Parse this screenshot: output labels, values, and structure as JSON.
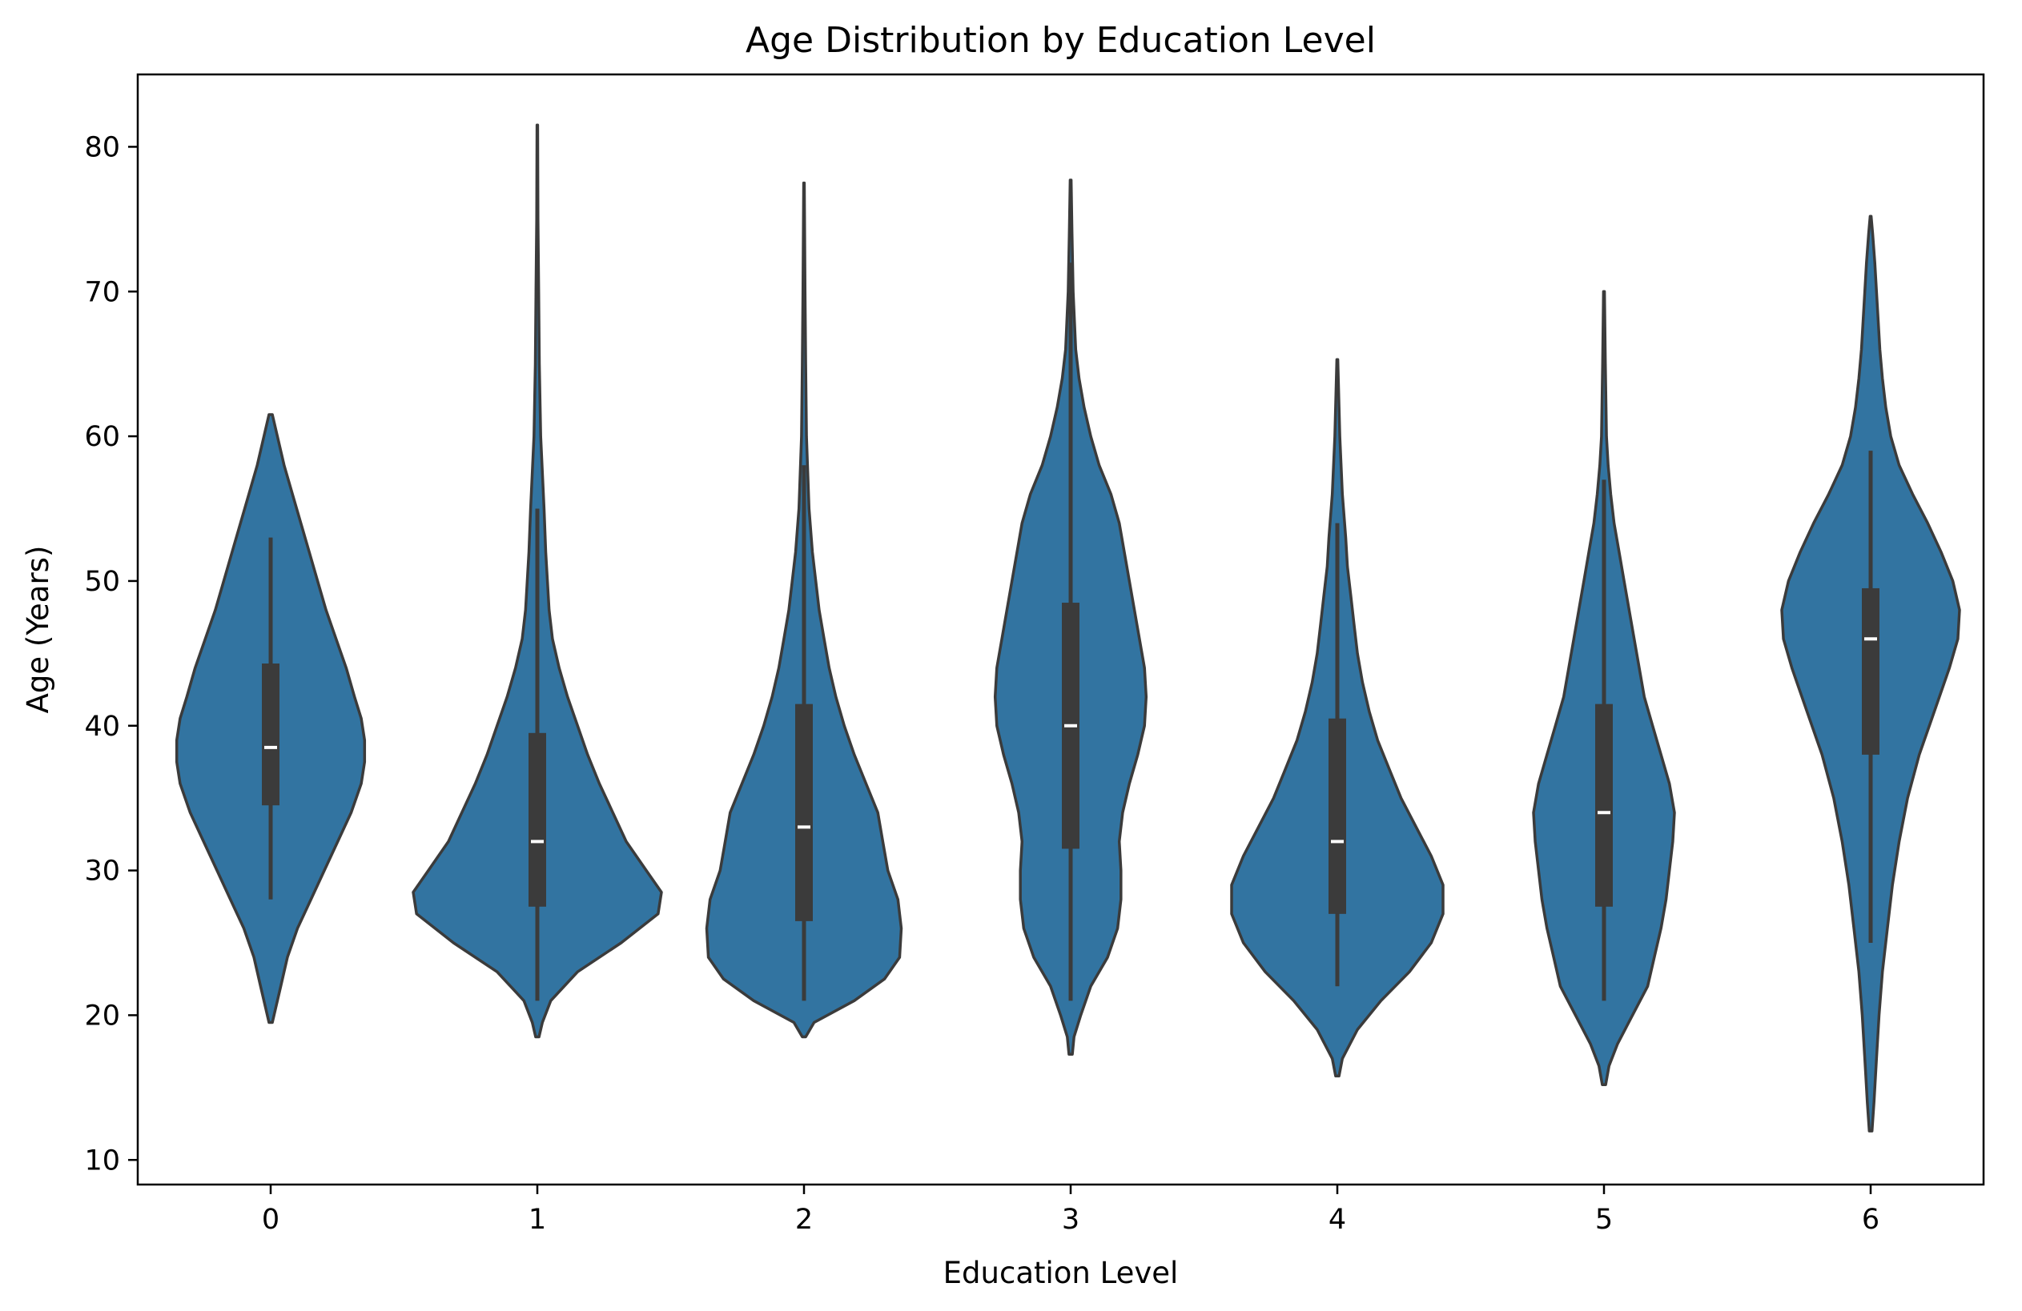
{
  "chart_data": {
    "type": "violin",
    "title": "Age Distribution by Education Level",
    "xlabel": "Education Level",
    "ylabel": "Age (Years)",
    "ylim": [
      8.3,
      85
    ],
    "yticks": [
      10,
      20,
      30,
      40,
      50,
      60,
      70,
      80
    ],
    "categories": [
      "0",
      "1",
      "2",
      "3",
      "4",
      "5",
      "6"
    ],
    "grid": false,
    "legend": "none",
    "colors": {
      "violin_fill": "#3274a1",
      "violin_edge": "#3b3b3b",
      "box": "#3b3b3b",
      "median": "#ffffff"
    },
    "violins": [
      {
        "category": "0",
        "min": 19.5,
        "max": 61.5,
        "whisker_low": 28,
        "q1": 34.5,
        "median": 38.5,
        "q3": 44.3,
        "whisker_high": 53,
        "density": [
          [
            19.5,
            0.01
          ],
          [
            20.5,
            0.03
          ],
          [
            22,
            0.06
          ],
          [
            24,
            0.1
          ],
          [
            26,
            0.16
          ],
          [
            28,
            0.24
          ],
          [
            30,
            0.32
          ],
          [
            32,
            0.4
          ],
          [
            34,
            0.48
          ],
          [
            36,
            0.54
          ],
          [
            37.5,
            0.56
          ],
          [
            39,
            0.56
          ],
          [
            40.5,
            0.54
          ],
          [
            42,
            0.5
          ],
          [
            44,
            0.45
          ],
          [
            46,
            0.39
          ],
          [
            48,
            0.33
          ],
          [
            50,
            0.28
          ],
          [
            52,
            0.23
          ],
          [
            54,
            0.18
          ],
          [
            56,
            0.13
          ],
          [
            58,
            0.08
          ],
          [
            60,
            0.04
          ],
          [
            61.5,
            0.01
          ]
        ]
      },
      {
        "category": "1",
        "min": 18.5,
        "max": 81.5,
        "whisker_low": 21,
        "q1": 27.5,
        "median": 32,
        "q3": 39.5,
        "whisker_high": 55,
        "density": [
          [
            18.5,
            0.01
          ],
          [
            19.5,
            0.03
          ],
          [
            21,
            0.08
          ],
          [
            23,
            0.24
          ],
          [
            25,
            0.5
          ],
          [
            27,
            0.72
          ],
          [
            28.5,
            0.74
          ],
          [
            30,
            0.65
          ],
          [
            32,
            0.53
          ],
          [
            34,
            0.45
          ],
          [
            36,
            0.37
          ],
          [
            38,
            0.3
          ],
          [
            40,
            0.24
          ],
          [
            42,
            0.18
          ],
          [
            44,
            0.13
          ],
          [
            46,
            0.09
          ],
          [
            48,
            0.07
          ],
          [
            50,
            0.06
          ],
          [
            52,
            0.05
          ],
          [
            55,
            0.04
          ],
          [
            60,
            0.02
          ],
          [
            65,
            0.012
          ],
          [
            70,
            0.008
          ],
          [
            75,
            0.004
          ],
          [
            81.5,
            0.002
          ]
        ]
      },
      {
        "category": "2",
        "min": 18.5,
        "max": 77.5,
        "whisker_low": 21,
        "q1": 26.5,
        "median": 33,
        "q3": 41.5,
        "whisker_high": 58,
        "density": [
          [
            18.5,
            0.01
          ],
          [
            19.5,
            0.06
          ],
          [
            21,
            0.3
          ],
          [
            22.5,
            0.48
          ],
          [
            24,
            0.57
          ],
          [
            26,
            0.58
          ],
          [
            28,
            0.56
          ],
          [
            30,
            0.5
          ],
          [
            32,
            0.47
          ],
          [
            34,
            0.44
          ],
          [
            36,
            0.37
          ],
          [
            38,
            0.3
          ],
          [
            40,
            0.24
          ],
          [
            42,
            0.19
          ],
          [
            44,
            0.15
          ],
          [
            46,
            0.12
          ],
          [
            48,
            0.09
          ],
          [
            50,
            0.07
          ],
          [
            52,
            0.05
          ],
          [
            55,
            0.03
          ],
          [
            60,
            0.015
          ],
          [
            65,
            0.01
          ],
          [
            70,
            0.006
          ],
          [
            77.5,
            0.002
          ]
        ]
      },
      {
        "category": "3",
        "min": 17.3,
        "max": 77.7,
        "whisker_low": 21,
        "q1": 31.5,
        "median": 40,
        "q3": 48.5,
        "whisker_high": 72,
        "density": [
          [
            17.3,
            0.01
          ],
          [
            18.5,
            0.02
          ],
          [
            20,
            0.06
          ],
          [
            22,
            0.12
          ],
          [
            24,
            0.22
          ],
          [
            26,
            0.28
          ],
          [
            28,
            0.3
          ],
          [
            30,
            0.3
          ],
          [
            32,
            0.29
          ],
          [
            34,
            0.31
          ],
          [
            36,
            0.35
          ],
          [
            38,
            0.4
          ],
          [
            40,
            0.44
          ],
          [
            42,
            0.45
          ],
          [
            44,
            0.44
          ],
          [
            46,
            0.41
          ],
          [
            48,
            0.38
          ],
          [
            50,
            0.35
          ],
          [
            52,
            0.32
          ],
          [
            54,
            0.29
          ],
          [
            56,
            0.24
          ],
          [
            58,
            0.17
          ],
          [
            60,
            0.12
          ],
          [
            62,
            0.08
          ],
          [
            64,
            0.05
          ],
          [
            66,
            0.03
          ],
          [
            70,
            0.015
          ],
          [
            74,
            0.008
          ],
          [
            77.7,
            0.003
          ]
        ]
      },
      {
        "category": "4",
        "min": 15.8,
        "max": 65.3,
        "whisker_low": 22,
        "q1": 27,
        "median": 32,
        "q3": 40.5,
        "whisker_high": 54,
        "density": [
          [
            15.8,
            0.01
          ],
          [
            17,
            0.03
          ],
          [
            19,
            0.12
          ],
          [
            21,
            0.26
          ],
          [
            23,
            0.43
          ],
          [
            25,
            0.56
          ],
          [
            27,
            0.63
          ],
          [
            29,
            0.63
          ],
          [
            31,
            0.56
          ],
          [
            33,
            0.47
          ],
          [
            35,
            0.38
          ],
          [
            37,
            0.31
          ],
          [
            39,
            0.24
          ],
          [
            41,
            0.19
          ],
          [
            43,
            0.15
          ],
          [
            45,
            0.12
          ],
          [
            47,
            0.1
          ],
          [
            49,
            0.08
          ],
          [
            51,
            0.06
          ],
          [
            53,
            0.05
          ],
          [
            56,
            0.03
          ],
          [
            60,
            0.015
          ],
          [
            65.3,
            0.003
          ]
        ]
      },
      {
        "category": "5",
        "min": 15.2,
        "max": 70,
        "whisker_low": 21,
        "q1": 27.5,
        "median": 34,
        "q3": 41.5,
        "whisker_high": 57,
        "density": [
          [
            15.2,
            0.01
          ],
          [
            16.5,
            0.03
          ],
          [
            18,
            0.08
          ],
          [
            20,
            0.17
          ],
          [
            22,
            0.26
          ],
          [
            24,
            0.3
          ],
          [
            26,
            0.34
          ],
          [
            28,
            0.37
          ],
          [
            30,
            0.39
          ],
          [
            32,
            0.41
          ],
          [
            34,
            0.42
          ],
          [
            36,
            0.39
          ],
          [
            38,
            0.34
          ],
          [
            40,
            0.29
          ],
          [
            42,
            0.24
          ],
          [
            44,
            0.21
          ],
          [
            46,
            0.18
          ],
          [
            48,
            0.15
          ],
          [
            50,
            0.12
          ],
          [
            52,
            0.09
          ],
          [
            54,
            0.06
          ],
          [
            56,
            0.04
          ],
          [
            58,
            0.025
          ],
          [
            60,
            0.015
          ],
          [
            65,
            0.008
          ],
          [
            70,
            0.003
          ]
        ]
      },
      {
        "category": "6",
        "min": 12,
        "max": 75.2,
        "whisker_low": 25,
        "q1": 38,
        "median": 46,
        "q3": 49.5,
        "whisker_high": 59,
        "density": [
          [
            12,
            0.008
          ],
          [
            14,
            0.02
          ],
          [
            17,
            0.035
          ],
          [
            20,
            0.05
          ],
          [
            23,
            0.07
          ],
          [
            26,
            0.1
          ],
          [
            29,
            0.13
          ],
          [
            32,
            0.17
          ],
          [
            35,
            0.22
          ],
          [
            38,
            0.29
          ],
          [
            41,
            0.38
          ],
          [
            44,
            0.47
          ],
          [
            46,
            0.52
          ],
          [
            48,
            0.53
          ],
          [
            50,
            0.49
          ],
          [
            52,
            0.42
          ],
          [
            54,
            0.34
          ],
          [
            56,
            0.25
          ],
          [
            58,
            0.17
          ],
          [
            60,
            0.12
          ],
          [
            62,
            0.09
          ],
          [
            64,
            0.07
          ],
          [
            66,
            0.055
          ],
          [
            68,
            0.045
          ],
          [
            70,
            0.035
          ],
          [
            72,
            0.025
          ],
          [
            74,
            0.012
          ],
          [
            75.2,
            0.003
          ]
        ]
      }
    ]
  }
}
